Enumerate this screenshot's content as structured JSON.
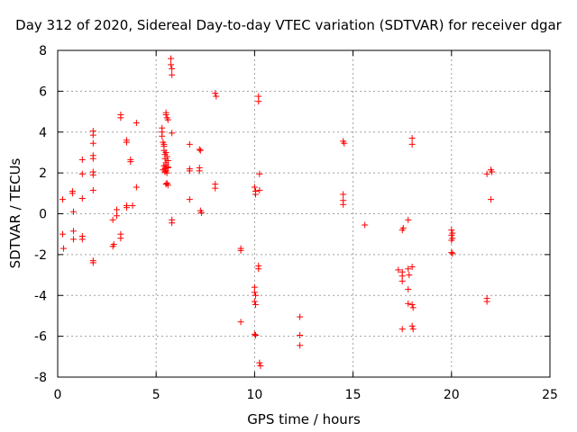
{
  "chart_data": {
    "type": "scatter",
    "title": "Day 312 of 2020, Sidereal Day-to-day VTEC variation (SDTVAR) for receiver dgar",
    "xlabel": "GPS time / hours",
    "ylabel": "SDTVAR / TECUs",
    "xlim": [
      0,
      25
    ],
    "ylim": [
      -8,
      8
    ],
    "xticks": [
      0,
      5,
      10,
      15,
      20,
      25
    ],
    "yticks": [
      -8,
      -6,
      -4,
      -2,
      0,
      2,
      4,
      6,
      8
    ],
    "grid": true,
    "marker": "plus",
    "color": "#ff0000",
    "series": [
      {
        "name": "SDTVAR",
        "points": [
          [
            0.25,
            0.7
          ],
          [
            0.25,
            -1.0
          ],
          [
            0.3,
            -1.7
          ],
          [
            0.75,
            1.1
          ],
          [
            0.75,
            1.0
          ],
          [
            0.8,
            0.1
          ],
          [
            0.8,
            -0.85
          ],
          [
            0.8,
            -1.25
          ],
          [
            1.25,
            2.65
          ],
          [
            1.25,
            1.95
          ],
          [
            1.25,
            0.75
          ],
          [
            1.25,
            -1.1
          ],
          [
            1.25,
            -1.25
          ],
          [
            1.8,
            4.05
          ],
          [
            1.8,
            3.85
          ],
          [
            1.8,
            3.45
          ],
          [
            1.8,
            2.85
          ],
          [
            1.8,
            2.7
          ],
          [
            1.8,
            2.05
          ],
          [
            1.8,
            1.9
          ],
          [
            1.8,
            1.15
          ],
          [
            1.8,
            -2.3
          ],
          [
            1.8,
            -2.4
          ],
          [
            2.8,
            -0.3
          ],
          [
            2.8,
            -1.6
          ],
          [
            2.85,
            -1.5
          ],
          [
            3.0,
            0.2
          ],
          [
            3.0,
            -0.1
          ],
          [
            3.2,
            4.85
          ],
          [
            3.2,
            4.7
          ],
          [
            3.2,
            -1.0
          ],
          [
            3.2,
            -1.2
          ],
          [
            3.5,
            3.6
          ],
          [
            3.5,
            3.5
          ],
          [
            3.5,
            0.3
          ],
          [
            3.5,
            0.4
          ],
          [
            3.7,
            2.65
          ],
          [
            3.7,
            2.55
          ],
          [
            3.8,
            0.4
          ],
          [
            4.0,
            4.45
          ],
          [
            4.0,
            1.3
          ],
          [
            5.3,
            4.2
          ],
          [
            5.3,
            4.0
          ],
          [
            5.3,
            3.8
          ],
          [
            5.35,
            3.5
          ],
          [
            5.4,
            3.4
          ],
          [
            5.4,
            3.3
          ],
          [
            5.4,
            3.1
          ],
          [
            5.45,
            2.9
          ],
          [
            5.45,
            2.7
          ],
          [
            5.5,
            2.5
          ],
          [
            5.4,
            2.35
          ],
          [
            5.45,
            2.2
          ],
          [
            5.5,
            2.1
          ],
          [
            5.55,
            2.0
          ],
          [
            5.35,
            2.15
          ],
          [
            5.5,
            2.4
          ],
          [
            5.6,
            2.3
          ],
          [
            5.6,
            2.25
          ],
          [
            5.45,
            2.05
          ],
          [
            5.5,
            3.0
          ],
          [
            5.55,
            2.8
          ],
          [
            5.6,
            2.6
          ],
          [
            5.5,
            1.45
          ],
          [
            5.55,
            1.5
          ],
          [
            5.6,
            1.4
          ],
          [
            5.5,
            4.95
          ],
          [
            5.5,
            4.85
          ],
          [
            5.55,
            4.7
          ],
          [
            5.6,
            4.6
          ],
          [
            5.75,
            7.6
          ],
          [
            5.75,
            7.3
          ],
          [
            5.8,
            7.1
          ],
          [
            5.8,
            6.8
          ],
          [
            5.8,
            3.95
          ],
          [
            5.8,
            -0.3
          ],
          [
            5.8,
            -0.45
          ],
          [
            6.7,
            3.4
          ],
          [
            6.7,
            2.2
          ],
          [
            6.7,
            2.1
          ],
          [
            6.7,
            0.7
          ],
          [
            7.2,
            3.15
          ],
          [
            7.25,
            3.1
          ],
          [
            7.2,
            2.25
          ],
          [
            7.2,
            2.1
          ],
          [
            7.25,
            0.15
          ],
          [
            7.3,
            0.05
          ],
          [
            8.0,
            5.9
          ],
          [
            8.05,
            5.75
          ],
          [
            8.0,
            1.45
          ],
          [
            8.0,
            1.25
          ],
          [
            9.3,
            -1.7
          ],
          [
            9.3,
            -1.8
          ],
          [
            9.3,
            -5.3
          ],
          [
            10.0,
            1.3
          ],
          [
            10.05,
            1.1
          ],
          [
            10.05,
            0.95
          ],
          [
            10.0,
            -3.6
          ],
          [
            10.0,
            -3.85
          ],
          [
            10.05,
            -4.0
          ],
          [
            10.0,
            -4.3
          ],
          [
            10.05,
            -4.45
          ],
          [
            10.0,
            -5.9
          ],
          [
            10.05,
            -5.95
          ],
          [
            10.2,
            5.75
          ],
          [
            10.2,
            5.5
          ],
          [
            10.25,
            1.95
          ],
          [
            10.25,
            1.15
          ],
          [
            10.2,
            -2.55
          ],
          [
            10.2,
            -2.7
          ],
          [
            10.25,
            -7.3
          ],
          [
            10.3,
            -7.45
          ],
          [
            12.3,
            -5.05
          ],
          [
            12.3,
            -5.95
          ],
          [
            12.3,
            -6.45
          ],
          [
            14.5,
            3.55
          ],
          [
            14.55,
            3.45
          ],
          [
            14.5,
            0.95
          ],
          [
            14.5,
            0.65
          ],
          [
            14.5,
            0.45
          ],
          [
            15.6,
            -0.55
          ],
          [
            17.3,
            -2.75
          ],
          [
            17.5,
            -2.85
          ],
          [
            17.5,
            -3.05
          ],
          [
            17.5,
            -3.3
          ],
          [
            17.55,
            -0.7
          ],
          [
            17.5,
            -0.8
          ],
          [
            17.5,
            -5.65
          ],
          [
            17.8,
            -0.3
          ],
          [
            17.8,
            -2.7
          ],
          [
            17.85,
            -3.0
          ],
          [
            17.8,
            -3.7
          ],
          [
            17.8,
            -4.4
          ],
          [
            18.0,
            -2.6
          ],
          [
            18.0,
            3.7
          ],
          [
            18.0,
            3.4
          ],
          [
            18.05,
            -4.6
          ],
          [
            18.0,
            -4.45
          ],
          [
            18.0,
            -5.5
          ],
          [
            18.05,
            -5.65
          ],
          [
            20.0,
            -0.8
          ],
          [
            20.05,
            -0.95
          ],
          [
            20.0,
            -1.05
          ],
          [
            20.05,
            -1.2
          ],
          [
            20.0,
            -1.3
          ],
          [
            20.0,
            -1.9
          ],
          [
            20.05,
            -1.95
          ],
          [
            21.8,
            1.95
          ],
          [
            22.0,
            2.15
          ],
          [
            22.05,
            2.05
          ],
          [
            21.8,
            -4.15
          ],
          [
            21.8,
            -4.3
          ],
          [
            22.0,
            0.7
          ]
        ]
      }
    ]
  }
}
